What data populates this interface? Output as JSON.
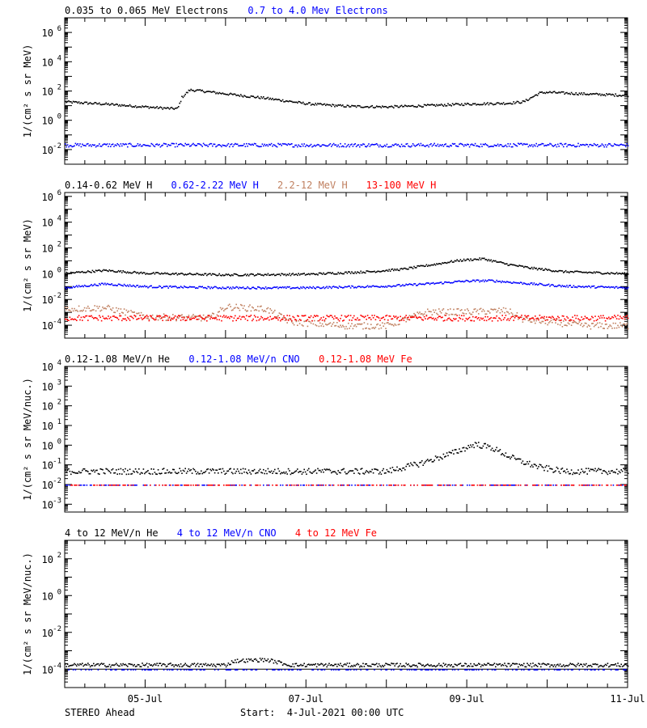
{
  "footer": {
    "spacecraft": "STEREO Ahead",
    "start": "Start:  4-Jul-2021 00:00 UTC"
  },
  "colors": {
    "black": "#000000",
    "blue": "#0000ff",
    "tan": "#c08060",
    "red": "#ff0000"
  },
  "chart_data": [
    {
      "type": "scatter",
      "panel": "electrons",
      "ylabel": "1/(cm² s sr MeV)",
      "yscale": "log",
      "ylim": [
        0.001,
        10000000
      ],
      "yticks": [
        0.01,
        1,
        100,
        10000,
        1000000
      ],
      "ytick_labels": [
        [
          "10",
          "-2"
        ],
        [
          "10",
          "0"
        ],
        [
          "10",
          "2"
        ],
        [
          "10",
          "4"
        ],
        [
          "10",
          "6"
        ]
      ],
      "xlim_days": [
        4.0,
        11.0
      ],
      "legend": [
        "0.035 to 0.065 MeV Electrons",
        "0.7 to 4.0 Mev Electrons"
      ],
      "legend_colors": [
        "#000000",
        "#0000ff"
      ],
      "series": [
        {
          "name": "0.035 to 0.065 MeV Electrons",
          "color": "#000000",
          "points": [
            [
              4.0,
              20
            ],
            [
              4.5,
              14
            ],
            [
              5.0,
              9
            ],
            [
              5.3,
              7
            ],
            [
              5.4,
              7
            ],
            [
              5.45,
              40
            ],
            [
              5.55,
              130
            ],
            [
              5.7,
              110
            ],
            [
              6.0,
              70
            ],
            [
              6.5,
              35
            ],
            [
              7.0,
              15
            ],
            [
              7.5,
              10
            ],
            [
              8.0,
              9
            ],
            [
              8.5,
              11
            ],
            [
              9.0,
              14
            ],
            [
              9.5,
              16
            ],
            [
              9.7,
              20
            ],
            [
              9.9,
              80
            ],
            [
              10.0,
              90
            ],
            [
              10.3,
              75
            ],
            [
              10.6,
              65
            ],
            [
              11.0,
              55
            ]
          ],
          "noise": 0.08
        },
        {
          "name": "0.7 to 4.0 Mev Electrons",
          "color": "#0000ff",
          "points": [
            [
              4.0,
              0.022
            ],
            [
              11.0,
              0.022
            ]
          ],
          "noise": 0.12
        }
      ]
    },
    {
      "type": "scatter",
      "panel": "protons",
      "ylabel": "1/(cm² s sr MeV)",
      "yscale": "log",
      "ylim": [
        1e-05,
        2000000
      ],
      "yticks": [
        0.0001,
        0.01,
        1,
        100,
        10000,
        1000000
      ],
      "ytick_labels": [
        [
          "10",
          "-4"
        ],
        [
          "10",
          "-2"
        ],
        [
          "10",
          "0"
        ],
        [
          "10",
          "2"
        ],
        [
          "10",
          "4"
        ],
        [
          "10",
          "6"
        ]
      ],
      "xlim_days": [
        4.0,
        11.0
      ],
      "legend": [
        "0.14-0.62 MeV H",
        "0.62-2.22 MeV H",
        "2.2-12 MeV H",
        "13-100 MeV H"
      ],
      "legend_colors": [
        "#000000",
        "#0000ff",
        "#c08060",
        "#ff0000"
      ],
      "series": [
        {
          "name": "0.14-0.62 MeV H",
          "color": "#000000",
          "points": [
            [
              4.0,
              1.2
            ],
            [
              4.5,
              2.0
            ],
            [
              5.0,
              1.2
            ],
            [
              6.0,
              0.9
            ],
            [
              7.0,
              1.0
            ],
            [
              7.8,
              1.6
            ],
            [
              8.2,
              2.5
            ],
            [
              8.6,
              6
            ],
            [
              8.9,
              12
            ],
            [
              9.2,
              16
            ],
            [
              9.5,
              6
            ],
            [
              9.8,
              3
            ],
            [
              10.2,
              1.6
            ],
            [
              11.0,
              1.1
            ]
          ],
          "noise": 0.08
        },
        {
          "name": "0.62-2.22 MeV H",
          "color": "#0000ff",
          "points": [
            [
              4.0,
              0.09
            ],
            [
              4.5,
              0.18
            ],
            [
              5.0,
              0.11
            ],
            [
              6.0,
              0.09
            ],
            [
              7.0,
              0.09
            ],
            [
              8.0,
              0.12
            ],
            [
              8.5,
              0.18
            ],
            [
              9.0,
              0.3
            ],
            [
              9.3,
              0.32
            ],
            [
              9.7,
              0.2
            ],
            [
              10.2,
              0.12
            ],
            [
              11.0,
              0.09
            ]
          ],
          "noise": 0.08
        },
        {
          "name": "2.2-12 MeV H",
          "color": "#c08060",
          "points": [
            [
              4.0,
              0.002
            ],
            [
              4.5,
              0.0025
            ],
            [
              5.0,
              0.0005
            ],
            [
              5.8,
              0.0004
            ],
            [
              6.0,
              0.003
            ],
            [
              6.5,
              0.002
            ],
            [
              6.8,
              0.0002
            ],
            [
              7.5,
              0.0001
            ],
            [
              8.0,
              0.0001
            ],
            [
              8.5,
              0.0012
            ],
            [
              9.0,
              0.0012
            ],
            [
              9.5,
              0.0015
            ],
            [
              9.7,
              0.0003
            ],
            [
              10.5,
              0.0001
            ],
            [
              11.0,
              0.0001
            ]
          ],
          "noise": 0.25
        },
        {
          "name": "13-100 MeV H",
          "color": "#ff0000",
          "points": [
            [
              4.0,
              0.0004
            ],
            [
              11.0,
              0.0004
            ]
          ],
          "noise": 0.22
        }
      ]
    },
    {
      "type": "scatter",
      "panel": "heavy-ions-low",
      "ylabel": "1/(cm² s sr MeV/nuc.)",
      "yscale": "log",
      "ylim": [
        0.0004,
        10000
      ],
      "yticks": [
        0.001,
        0.01,
        0.1,
        1,
        10,
        100,
        1000,
        10000
      ],
      "ytick_labels": [
        [
          "10",
          "-3"
        ],
        [
          "10",
          "-2"
        ],
        [
          "10",
          "-1"
        ],
        [
          "10",
          "0"
        ],
        [
          "10",
          "1"
        ],
        [
          "10",
          "2"
        ],
        [
          "10",
          "3"
        ],
        [
          "10",
          "4"
        ]
      ],
      "xlim_days": [
        4.0,
        11.0
      ],
      "legend": [
        "0.12-1.08 MeV/n He",
        "0.12-1.08 MeV/n CNO",
        "0.12-1.08 MeV Fe"
      ],
      "legend_colors": [
        "#000000",
        "#0000ff",
        "#ff0000"
      ],
      "series": [
        {
          "name": "0.12-1.08 MeV/n He",
          "color": "#000000",
          "points": [
            [
              4.0,
              0.05
            ],
            [
              8.0,
              0.05
            ],
            [
              8.4,
              0.12
            ],
            [
              8.8,
              0.4
            ],
            [
              9.1,
              1.2
            ],
            [
              9.3,
              0.8
            ],
            [
              9.6,
              0.2
            ],
            [
              9.9,
              0.08
            ],
            [
              10.2,
              0.05
            ],
            [
              11.0,
              0.05
            ]
          ],
          "noise": 0.15
        },
        {
          "name": "0.12-1.08 MeV/n CNO",
          "color": "#0000ff",
          "points": [
            [
              4.0,
              0.01
            ],
            [
              11.0,
              0.01
            ]
          ],
          "noise": 0.0
        },
        {
          "name": "0.12-1.08 MeV Fe",
          "color": "#ff0000",
          "points": [
            [
              4.0,
              0.01
            ],
            [
              11.0,
              0.01
            ]
          ],
          "noise": 0.0
        }
      ]
    },
    {
      "type": "scatter",
      "panel": "heavy-ions-high",
      "ylabel": "1/(cm² s sr MeV/nuc.)",
      "yscale": "log",
      "ylim": [
        1e-05,
        1000
      ],
      "yticks": [
        0.0001,
        0.01,
        1,
        100
      ],
      "ytick_labels": [
        [
          "10",
          "-4"
        ],
        [
          "10",
          "-2"
        ],
        [
          "10",
          "0"
        ],
        [
          "10",
          "2"
        ]
      ],
      "xlim_days": [
        4.0,
        11.0
      ],
      "legend": [
        "4 to 12 MeV/n He",
        "4 to 12 MeV/n CNO",
        "4 to 12 MeV Fe"
      ],
      "legend_colors": [
        "#000000",
        "#0000ff",
        "#ff0000"
      ],
      "series": [
        {
          "name": "4 to 12 MeV/n He",
          "color": "#000000",
          "points": [
            [
              4.0,
              0.00018
            ],
            [
              6.0,
              0.00018
            ],
            [
              6.1,
              0.0003
            ],
            [
              6.5,
              0.00035
            ],
            [
              6.8,
              0.00018
            ],
            [
              11.0,
              0.00018
            ]
          ],
          "noise": 0.1
        },
        {
          "name": "4 to 12 MeV/n CNO",
          "color": "#0000ff",
          "points": [
            [
              4.0,
              0.0001
            ],
            [
              11.0,
              0.0001
            ]
          ],
          "noise": 0.0
        }
      ],
      "hline": 0.0001
    }
  ],
  "xaxis": {
    "tick_labels": [
      "05-Jul",
      "07-Jul",
      "09-Jul",
      "11-Jul"
    ],
    "tick_days": [
      5,
      7,
      9,
      11
    ],
    "xlim_days": [
      4.0,
      11.0
    ]
  }
}
